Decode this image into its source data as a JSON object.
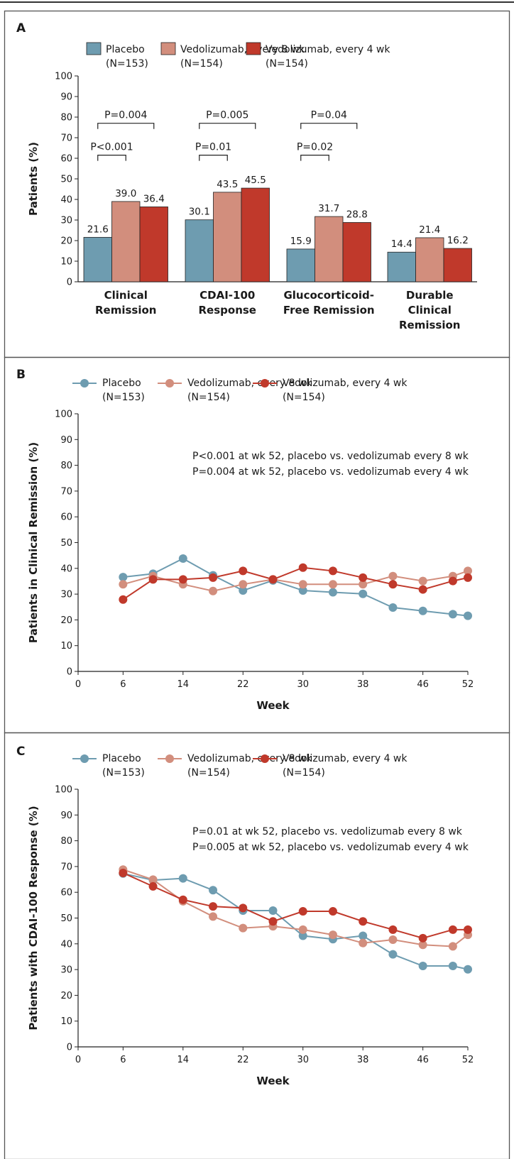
{
  "colors": {
    "placebo": "#6e9cb0",
    "q8": "#d28e7d",
    "q4": "#c0392b",
    "frame": "#555555"
  },
  "legend": [
    {
      "name": "Placebo",
      "n": "(N=153)"
    },
    {
      "name": "Vedolizumab, every 8 wk",
      "n": "(N=154)"
    },
    {
      "name": "Vedolizumab, every 4 wk",
      "n": "(N=154)"
    }
  ],
  "chart_data": [
    {
      "panel": "A",
      "type": "bar",
      "categories": [
        [
          "Clinical",
          "Remission"
        ],
        [
          "CDAI-100",
          "Response"
        ],
        [
          "Glucocorticoid-",
          "Free Remission"
        ],
        [
          "Durable",
          "Clinical",
          "Remission"
        ]
      ],
      "series": [
        {
          "name": "Placebo (N=153)",
          "values": [
            21.6,
            30.1,
            15.9,
            14.4
          ],
          "labels": [
            "21.6",
            "30.1",
            "15.9",
            "14.4"
          ]
        },
        {
          "name": "Vedolizumab, every 8 wk (N=154)",
          "values": [
            39.0,
            43.5,
            31.7,
            21.4
          ],
          "labels": [
            "39.0",
            "43.5",
            "31.7",
            "21.4"
          ]
        },
        {
          "name": "Vedolizumab, every 4 wk (N=154)",
          "values": [
            36.4,
            45.5,
            28.8,
            16.2
          ],
          "labels": [
            "36.4",
            "45.5",
            "28.8",
            "16.2"
          ]
        }
      ],
      "ylabel": "Patients (%)",
      "ylim": [
        0,
        100
      ],
      "yticks": [
        "0",
        "10",
        "20",
        "30",
        "40",
        "50",
        "60",
        "70",
        "80",
        "90",
        "100"
      ],
      "comparisons": [
        {
          "category": 0,
          "to": "q8",
          "text": "P<0.001"
        },
        {
          "category": 0,
          "to": "q4",
          "text": "P=0.004"
        },
        {
          "category": 1,
          "to": "q8",
          "text": "P=0.01"
        },
        {
          "category": 1,
          "to": "q4",
          "text": "P=0.005"
        },
        {
          "category": 2,
          "to": "q8",
          "text": "P=0.02"
        },
        {
          "category": 2,
          "to": "q4",
          "text": "P=0.04"
        }
      ]
    },
    {
      "panel": "B",
      "type": "line",
      "xlabel": "Week",
      "ylabel": "Patients in Clinical Remission (%)",
      "xlim": [
        0,
        52
      ],
      "ylim": [
        0,
        100
      ],
      "xticks": [
        "0",
        "6",
        "14",
        "22",
        "30",
        "38",
        "46",
        "52"
      ],
      "yticks": [
        "0",
        "10",
        "20",
        "30",
        "40",
        "50",
        "60",
        "70",
        "80",
        "90",
        "100"
      ],
      "x": [
        6,
        10,
        14,
        18,
        22,
        26,
        30,
        34,
        38,
        42,
        46,
        50,
        52
      ],
      "series": [
        {
          "name": "Placebo (N=153)",
          "values": [
            36.6,
            37.9,
            43.8,
            37.3,
            31.4,
            35.3,
            31.4,
            30.7,
            30.1,
            24.8,
            23.5,
            22.2,
            21.6
          ]
        },
        {
          "name": "Vedolizumab, every 8 wk (N=154)",
          "values": [
            33.8,
            37.0,
            33.8,
            31.2,
            33.8,
            35.7,
            33.8,
            33.8,
            33.8,
            37.0,
            35.1,
            37.0,
            39.0
          ]
        },
        {
          "name": "Vedolizumab, every 4 wk (N=154)",
          "values": [
            27.9,
            35.7,
            35.7,
            36.4,
            39.0,
            35.7,
            40.3,
            39.0,
            36.4,
            33.8,
            31.8,
            35.1,
            36.4
          ]
        }
      ],
      "annotations": [
        "P<0.001 at wk 52, placebo vs. vedolizumab every 8 wk",
        "P=0.004 at wk 52, placebo vs. vedolizumab every 4 wk"
      ]
    },
    {
      "panel": "C",
      "type": "line",
      "xlabel": "Week",
      "ylabel": "Patients with CDAI-100 Response (%)",
      "xlim": [
        0,
        52
      ],
      "ylim": [
        0,
        100
      ],
      "xticks": [
        "0",
        "6",
        "14",
        "22",
        "30",
        "38",
        "46",
        "52"
      ],
      "yticks": [
        "0",
        "10",
        "20",
        "30",
        "40",
        "50",
        "60",
        "70",
        "80",
        "90",
        "100"
      ],
      "x": [
        6,
        10,
        14,
        18,
        22,
        26,
        30,
        34,
        38,
        42,
        46,
        50,
        52
      ],
      "series": [
        {
          "name": "Placebo (N=153)",
          "values": [
            67.3,
            64.7,
            65.4,
            60.8,
            52.9,
            52.9,
            43.1,
            41.8,
            43.1,
            35.9,
            31.4,
            31.4,
            30.1
          ]
        },
        {
          "name": "Vedolizumab, every 8 wk (N=154)",
          "values": [
            68.8,
            64.9,
            56.5,
            50.6,
            46.1,
            46.8,
            45.5,
            43.5,
            40.3,
            41.6,
            39.6,
            39.0,
            43.5
          ]
        },
        {
          "name": "Vedolizumab, every 4 wk (N=154)",
          "values": [
            67.5,
            62.3,
            57.1,
            54.5,
            53.9,
            48.7,
            52.6,
            52.6,
            48.7,
            45.5,
            42.2,
            45.5,
            45.5
          ]
        }
      ],
      "annotations": [
        "P=0.01 at wk 52, placebo vs. vedolizumab every 8 wk",
        "P=0.005 at wk 52, placebo vs. vedolizumab every 4 wk"
      ]
    }
  ]
}
